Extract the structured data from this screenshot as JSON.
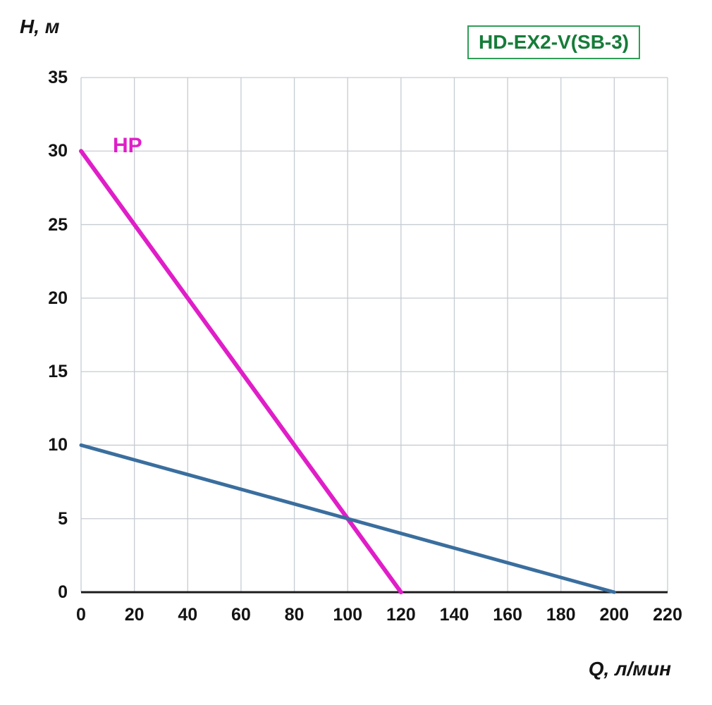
{
  "chart_data": {
    "type": "line",
    "title": "HD-EX2-V(SB-3)",
    "xlabel": "Q, л/мин",
    "ylabel": "H, м",
    "xlim": [
      0,
      220
    ],
    "ylim": [
      0,
      35
    ],
    "x_ticks": [
      0,
      20,
      40,
      60,
      80,
      100,
      120,
      140,
      160,
      180,
      200,
      220
    ],
    "y_ticks": [
      0,
      5,
      10,
      15,
      20,
      25,
      30,
      35
    ],
    "grid": true,
    "legend_position": "inline-label-top-left",
    "colors": {
      "grid": "#c6ccd2",
      "axis": "#1c1c1c",
      "text": "#141414",
      "title": "#157c38",
      "title_border": "#2f9e56"
    },
    "series": [
      {
        "name": "HP",
        "color": "#e01ec8",
        "width": 6,
        "points": [
          [
            0,
            30
          ],
          [
            120,
            0
          ]
        ]
      },
      {
        "name": "",
        "color": "#3a6e9e",
        "width": 5,
        "points": [
          [
            0,
            10
          ],
          [
            200,
            0
          ]
        ]
      }
    ]
  }
}
